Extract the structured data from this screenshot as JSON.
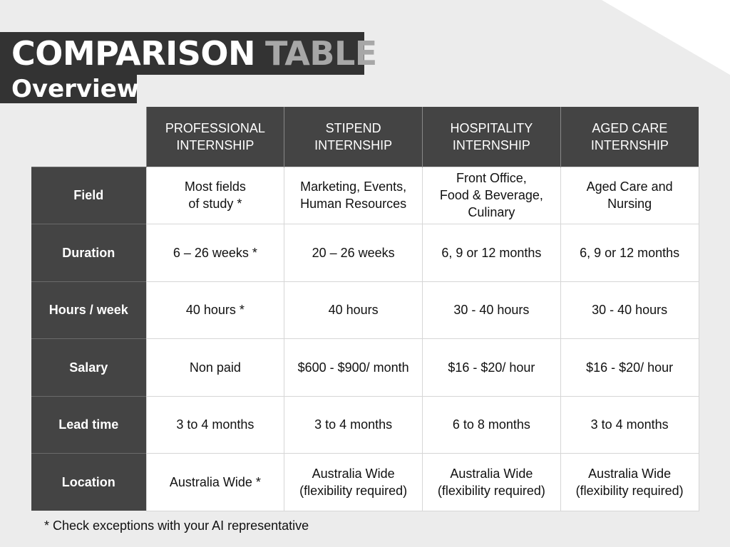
{
  "header": {
    "title_word_1": "COMPARISON",
    "title_word_2": "TABLE",
    "subtitle": "Overview"
  },
  "table": {
    "columns": [
      "PROFESSIONAL\nINTERNSHIP",
      "STIPEND\nINTERNSHIP",
      "HOSPITALITY\nINTERNSHIP",
      "AGED CARE\nINTERNSHIP"
    ],
    "rows": [
      {
        "label": "Field",
        "cells": [
          "Most fields\nof study *",
          "Marketing, Events,\nHuman Resources",
          "Front Office,\nFood & Beverage,\nCulinary",
          "Aged Care and\nNursing"
        ]
      },
      {
        "label": "Duration",
        "cells": [
          "6 – 26 weeks *",
          "20 – 26 weeks",
          "6, 9 or 12 months",
          "6, 9 or 12 months"
        ]
      },
      {
        "label": "Hours / week",
        "cells": [
          "40 hours *",
          "40 hours",
          "30 - 40 hours",
          "30 - 40 hours"
        ]
      },
      {
        "label": "Salary",
        "cells": [
          "Non paid",
          "$600 - $900/ month",
          "$16 - $20/ hour",
          "$16 - $20/ hour"
        ]
      },
      {
        "label": "Lead time",
        "cells": [
          "3 to 4 months",
          "3 to 4 months",
          "6 to 8 months",
          "3 to 4 months"
        ]
      },
      {
        "label": "Location",
        "cells": [
          "Australia Wide *",
          "Australia Wide\n(flexibility required)",
          "Australia Wide\n(flexibility required)",
          "Australia Wide\n(flexibility required)"
        ]
      }
    ]
  },
  "footnote": "* Check exceptions with your AI representative",
  "colors": {
    "dark": "#333333",
    "header_cell": "#444444",
    "background": "#ececec",
    "title_accent": "#a7a7a7"
  }
}
